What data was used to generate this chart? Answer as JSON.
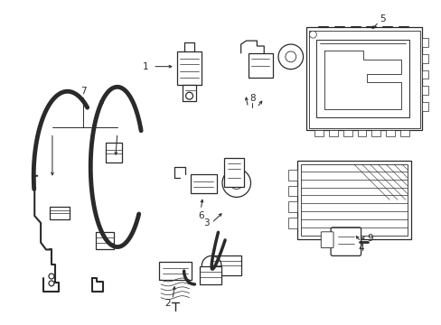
{
  "bg_color": "#ffffff",
  "line_color": "#2a2a2a",
  "lw": 0.9,
  "fig_width": 4.89,
  "fig_height": 3.6,
  "dpi": 100
}
